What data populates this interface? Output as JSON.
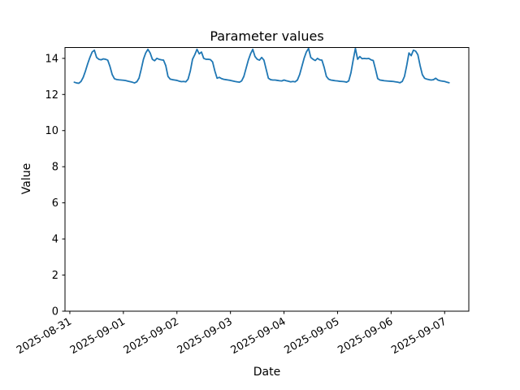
{
  "figure": {
    "title": "Parameter values",
    "background": "#ffffff",
    "axis_color": "#000000"
  },
  "chart_data": {
    "type": "line",
    "title": "Parameter values",
    "xlabel": "Date",
    "ylabel": "Value",
    "grid": false,
    "legend": null,
    "line_color": "#1f77b4",
    "ylim": [
      0,
      14.6
    ],
    "yticks": [
      0,
      2,
      4,
      6,
      8,
      10,
      12,
      14
    ],
    "xticks": [
      "2025-08-31",
      "2025-09-01",
      "2025-09-02",
      "2025-09-03",
      "2025-09-04",
      "2025-09-05",
      "2025-09-06",
      "2025-09-07"
    ],
    "xlim": [
      "2025-08-30 21:50",
      "2025-09-07 10:50"
    ],
    "series": [
      {
        "name": "Parameter values",
        "color": "#1f77b4",
        "points": [
          [
            "2025-08-31 02:00",
            12.68
          ],
          [
            "2025-08-31 03:00",
            12.64
          ],
          [
            "2025-08-31 04:00",
            12.62
          ],
          [
            "2025-08-31 05:00",
            12.72
          ],
          [
            "2025-08-31 06:00",
            12.95
          ],
          [
            "2025-08-31 07:00",
            13.3
          ],
          [
            "2025-08-31 08:00",
            13.7
          ],
          [
            "2025-08-31 09:00",
            14.05
          ],
          [
            "2025-08-31 10:00",
            14.35
          ],
          [
            "2025-08-31 11:00",
            14.45
          ],
          [
            "2025-08-31 12:00",
            14.05
          ],
          [
            "2025-08-31 13:00",
            13.95
          ],
          [
            "2025-08-31 14:00",
            13.92
          ],
          [
            "2025-08-31 15:00",
            13.97
          ],
          [
            "2025-08-31 16:00",
            13.95
          ],
          [
            "2025-08-31 17:00",
            13.9
          ],
          [
            "2025-08-31 18:00",
            13.55
          ],
          [
            "2025-08-31 19:00",
            13.1
          ],
          [
            "2025-08-31 20:00",
            12.87
          ],
          [
            "2025-08-31 21:00",
            12.83
          ],
          [
            "2025-08-31 22:00",
            12.81
          ],
          [
            "2025-08-31 23:00",
            12.8
          ],
          [
            "2025-09-01 00:00",
            12.79
          ],
          [
            "2025-09-01 01:00",
            12.77
          ],
          [
            "2025-09-01 02:00",
            12.74
          ],
          [
            "2025-09-01 03:00",
            12.71
          ],
          [
            "2025-09-01 04:00",
            12.68
          ],
          [
            "2025-09-01 05:00",
            12.64
          ],
          [
            "2025-09-01 06:00",
            12.7
          ],
          [
            "2025-09-01 07:00",
            12.9
          ],
          [
            "2025-09-01 08:00",
            13.4
          ],
          [
            "2025-09-01 09:00",
            13.95
          ],
          [
            "2025-09-01 10:00",
            14.3
          ],
          [
            "2025-09-01 11:00",
            14.5
          ],
          [
            "2025-09-01 12:00",
            14.3
          ],
          [
            "2025-09-01 13:00",
            13.95
          ],
          [
            "2025-09-01 14:00",
            13.87
          ],
          [
            "2025-09-01 15:00",
            14.0
          ],
          [
            "2025-09-01 16:00",
            13.95
          ],
          [
            "2025-09-01 17:00",
            13.92
          ],
          [
            "2025-09-01 18:00",
            13.9
          ],
          [
            "2025-09-01 19:00",
            13.6
          ],
          [
            "2025-09-01 20:00",
            13.0
          ],
          [
            "2025-09-01 21:00",
            12.85
          ],
          [
            "2025-09-01 22:00",
            12.82
          ],
          [
            "2025-09-01 23:00",
            12.8
          ],
          [
            "2025-09-02 00:00",
            12.78
          ],
          [
            "2025-09-02 01:00",
            12.74
          ],
          [
            "2025-09-02 02:00",
            12.71
          ],
          [
            "2025-09-02 03:00",
            12.72
          ],
          [
            "2025-09-02 04:00",
            12.7
          ],
          [
            "2025-09-02 05:00",
            12.85
          ],
          [
            "2025-09-02 06:00",
            13.3
          ],
          [
            "2025-09-02 07:00",
            13.95
          ],
          [
            "2025-09-02 08:00",
            14.2
          ],
          [
            "2025-09-02 09:00",
            14.5
          ],
          [
            "2025-09-02 10:00",
            14.25
          ],
          [
            "2025-09-02 11:00",
            14.35
          ],
          [
            "2025-09-02 12:00",
            14.0
          ],
          [
            "2025-09-02 13:00",
            13.95
          ],
          [
            "2025-09-02 14:00",
            13.95
          ],
          [
            "2025-09-02 15:00",
            13.93
          ],
          [
            "2025-09-02 16:00",
            13.8
          ],
          [
            "2025-09-02 17:00",
            13.3
          ],
          [
            "2025-09-02 18:00",
            12.9
          ],
          [
            "2025-09-02 19:00",
            12.95
          ],
          [
            "2025-09-02 20:00",
            12.88
          ],
          [
            "2025-09-02 21:00",
            12.84
          ],
          [
            "2025-09-02 22:00",
            12.82
          ],
          [
            "2025-09-02 23:00",
            12.8
          ],
          [
            "2025-09-03 00:00",
            12.78
          ],
          [
            "2025-09-03 01:00",
            12.75
          ],
          [
            "2025-09-03 02:00",
            12.72
          ],
          [
            "2025-09-03 03:00",
            12.7
          ],
          [
            "2025-09-03 04:00",
            12.68
          ],
          [
            "2025-09-03 05:00",
            12.75
          ],
          [
            "2025-09-03 06:00",
            13.0
          ],
          [
            "2025-09-03 07:00",
            13.45
          ],
          [
            "2025-09-03 08:00",
            13.9
          ],
          [
            "2025-09-03 09:00",
            14.25
          ],
          [
            "2025-09-03 10:00",
            14.5
          ],
          [
            "2025-09-03 11:00",
            14.1
          ],
          [
            "2025-09-03 12:00",
            13.95
          ],
          [
            "2025-09-03 13:00",
            13.9
          ],
          [
            "2025-09-03 14:00",
            14.05
          ],
          [
            "2025-09-03 15:00",
            13.9
          ],
          [
            "2025-09-03 16:00",
            13.4
          ],
          [
            "2025-09-03 17:00",
            12.9
          ],
          [
            "2025-09-03 18:00",
            12.82
          ],
          [
            "2025-09-03 19:00",
            12.8
          ],
          [
            "2025-09-03 20:00",
            12.8
          ],
          [
            "2025-09-03 21:00",
            12.78
          ],
          [
            "2025-09-03 22:00",
            12.76
          ],
          [
            "2025-09-03 23:00",
            12.75
          ],
          [
            "2025-09-04 00:00",
            12.8
          ],
          [
            "2025-09-04 01:00",
            12.76
          ],
          [
            "2025-09-04 02:00",
            12.73
          ],
          [
            "2025-09-04 03:00",
            12.7
          ],
          [
            "2025-09-04 04:00",
            12.72
          ],
          [
            "2025-09-04 05:00",
            12.7
          ],
          [
            "2025-09-04 06:00",
            12.8
          ],
          [
            "2025-09-04 07:00",
            13.1
          ],
          [
            "2025-09-04 08:00",
            13.55
          ],
          [
            "2025-09-04 09:00",
            14.0
          ],
          [
            "2025-09-04 10:00",
            14.35
          ],
          [
            "2025-09-04 11:00",
            14.55
          ],
          [
            "2025-09-04 12:00",
            14.05
          ],
          [
            "2025-09-04 13:00",
            13.95
          ],
          [
            "2025-09-04 14:00",
            13.88
          ],
          [
            "2025-09-04 15:00",
            14.0
          ],
          [
            "2025-09-04 16:00",
            13.92
          ],
          [
            "2025-09-04 17:00",
            13.9
          ],
          [
            "2025-09-04 18:00",
            13.5
          ],
          [
            "2025-09-04 19:00",
            13.0
          ],
          [
            "2025-09-04 20:00",
            12.85
          ],
          [
            "2025-09-04 21:00",
            12.8
          ],
          [
            "2025-09-04 22:00",
            12.78
          ],
          [
            "2025-09-04 23:00",
            12.76
          ],
          [
            "2025-09-05 00:00",
            12.75
          ],
          [
            "2025-09-05 01:00",
            12.73
          ],
          [
            "2025-09-05 02:00",
            12.72
          ],
          [
            "2025-09-05 03:00",
            12.71
          ],
          [
            "2025-09-05 04:00",
            12.68
          ],
          [
            "2025-09-05 05:00",
            12.75
          ],
          [
            "2025-09-05 06:00",
            13.2
          ],
          [
            "2025-09-05 07:00",
            13.9
          ],
          [
            "2025-09-05 08:00",
            14.55
          ],
          [
            "2025-09-05 09:00",
            13.95
          ],
          [
            "2025-09-05 10:00",
            14.1
          ],
          [
            "2025-09-05 11:00",
            13.98
          ],
          [
            "2025-09-05 12:00",
            14.0
          ],
          [
            "2025-09-05 13:00",
            13.98
          ],
          [
            "2025-09-05 14:00",
            14.0
          ],
          [
            "2025-09-05 15:00",
            13.92
          ],
          [
            "2025-09-05 16:00",
            13.88
          ],
          [
            "2025-09-05 17:00",
            13.4
          ],
          [
            "2025-09-05 18:00",
            12.88
          ],
          [
            "2025-09-05 19:00",
            12.8
          ],
          [
            "2025-09-05 20:00",
            12.78
          ],
          [
            "2025-09-05 21:00",
            12.76
          ],
          [
            "2025-09-05 22:00",
            12.75
          ],
          [
            "2025-09-05 23:00",
            12.74
          ],
          [
            "2025-09-06 00:00",
            12.73
          ],
          [
            "2025-09-06 01:00",
            12.72
          ],
          [
            "2025-09-06 02:00",
            12.7
          ],
          [
            "2025-09-06 03:00",
            12.68
          ],
          [
            "2025-09-06 04:00",
            12.65
          ],
          [
            "2025-09-06 05:00",
            12.72
          ],
          [
            "2025-09-06 06:00",
            13.0
          ],
          [
            "2025-09-06 07:00",
            13.6
          ],
          [
            "2025-09-06 08:00",
            14.3
          ],
          [
            "2025-09-06 09:00",
            14.15
          ],
          [
            "2025-09-06 10:00",
            14.45
          ],
          [
            "2025-09-06 11:00",
            14.4
          ],
          [
            "2025-09-06 12:00",
            14.2
          ],
          [
            "2025-09-06 13:00",
            13.6
          ],
          [
            "2025-09-06 14:00",
            13.1
          ],
          [
            "2025-09-06 15:00",
            12.9
          ],
          [
            "2025-09-06 16:00",
            12.85
          ],
          [
            "2025-09-06 17:00",
            12.82
          ],
          [
            "2025-09-06 18:00",
            12.8
          ],
          [
            "2025-09-06 19:00",
            12.82
          ],
          [
            "2025-09-06 20:00",
            12.9
          ],
          [
            "2025-09-06 21:00",
            12.8
          ],
          [
            "2025-09-06 22:00",
            12.76
          ],
          [
            "2025-09-06 23:00",
            12.74
          ],
          [
            "2025-09-07 00:00",
            12.72
          ],
          [
            "2025-09-07 01:00",
            12.68
          ],
          [
            "2025-09-07 02:00",
            12.65
          ]
        ]
      }
    ]
  }
}
